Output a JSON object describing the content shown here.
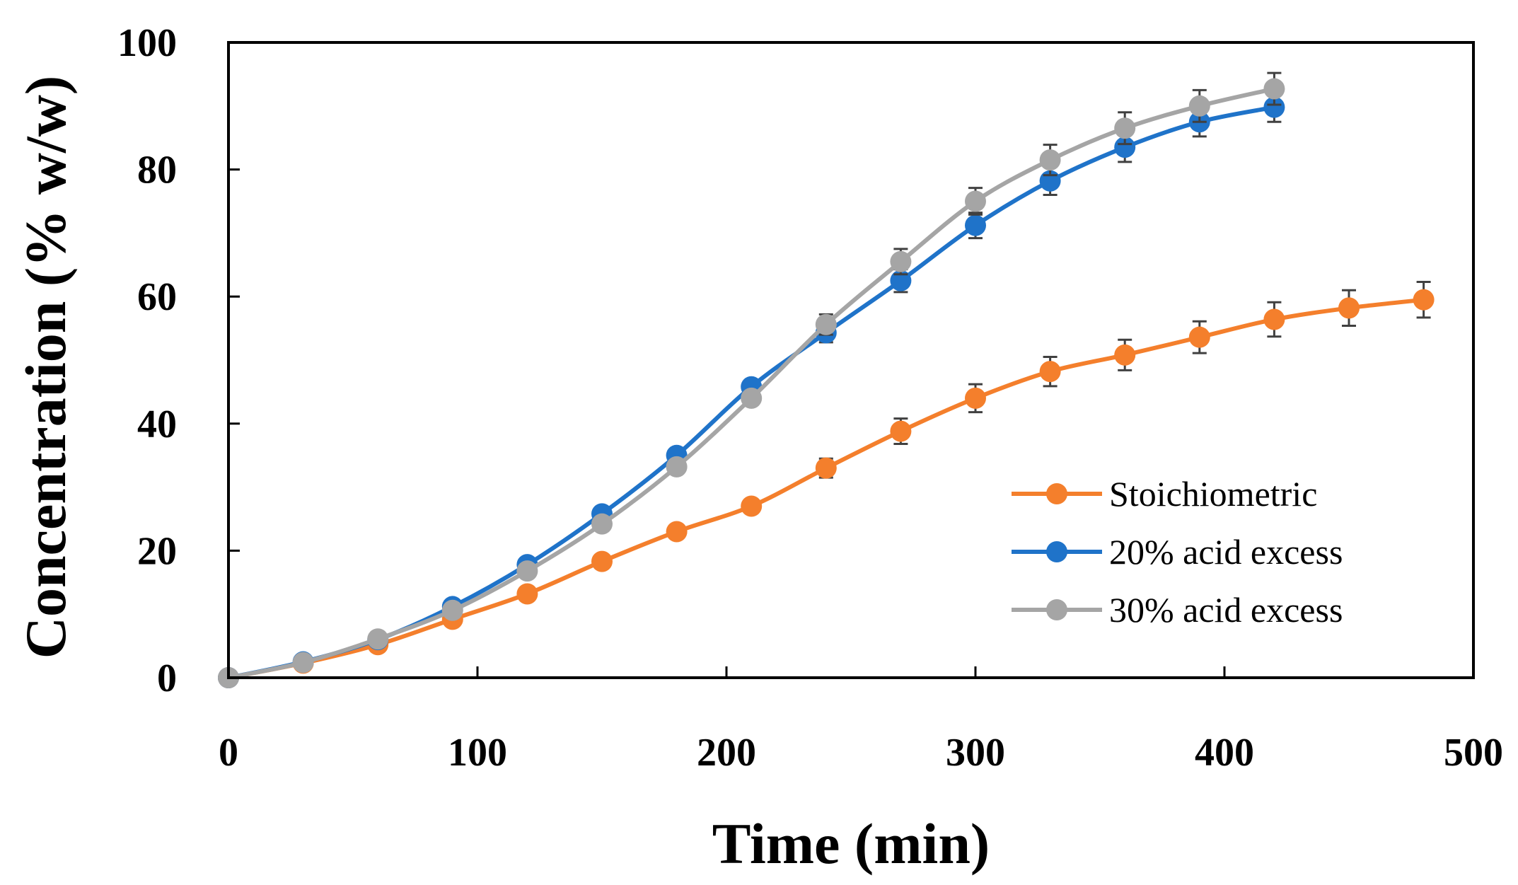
{
  "chart_data": {
    "type": "line",
    "title": "",
    "xlabel": "Time (min)",
    "ylabel": "Concentration (% w/w)",
    "xlim": [
      0,
      500
    ],
    "ylim": [
      0,
      100
    ],
    "xticks": [
      0,
      100,
      200,
      300,
      400,
      500
    ],
    "yticks": [
      0,
      20,
      40,
      60,
      80,
      100
    ],
    "grid": false,
    "legend_position": "lower-right",
    "series": [
      {
        "name": "Stoichiometric",
        "color": "#f47f2c",
        "x": [
          0,
          30,
          60,
          90,
          120,
          150,
          180,
          210,
          240,
          270,
          300,
          330,
          360,
          390,
          420,
          450,
          480
        ],
        "values": [
          0,
          2.3,
          5.2,
          9.2,
          13.2,
          18.3,
          23,
          27,
          33,
          38.8,
          44,
          48.2,
          50.8,
          53.6,
          56.4,
          58.2,
          59.5
        ],
        "error": [
          0,
          0,
          0,
          0,
          0,
          0,
          0,
          0,
          1.5,
          2,
          2.2,
          2.3,
          2.4,
          2.5,
          2.7,
          2.8,
          2.8
        ]
      },
      {
        "name": "20% acid excess",
        "color": "#1f73c9",
        "x": [
          0,
          30,
          60,
          90,
          120,
          150,
          180,
          210,
          240,
          270,
          300,
          330,
          360,
          390,
          420
        ],
        "values": [
          0,
          2.5,
          6,
          11.2,
          17.8,
          25.8,
          35,
          45.8,
          54.3,
          62.5,
          71.2,
          78.2,
          83.5,
          87.5,
          89.8
        ],
        "error": [
          0,
          0,
          0,
          0,
          0,
          0,
          0,
          0,
          1.5,
          1.8,
          2,
          2.2,
          2.3,
          2.3,
          2.3
        ]
      },
      {
        "name": "30% acid excess",
        "color": "#a5a5a5",
        "x": [
          0,
          30,
          60,
          90,
          120,
          150,
          180,
          210,
          240,
          270,
          300,
          330,
          360,
          390,
          420
        ],
        "values": [
          0,
          2.4,
          6.1,
          10.6,
          16.8,
          24.2,
          33.2,
          44,
          55.6,
          65.5,
          75,
          81.5,
          86.5,
          90,
          92.7
        ],
        "error": [
          0,
          0,
          0,
          0,
          0,
          0,
          0,
          0,
          1.6,
          2,
          2.1,
          2.4,
          2.5,
          2.5,
          2.5
        ]
      }
    ]
  }
}
